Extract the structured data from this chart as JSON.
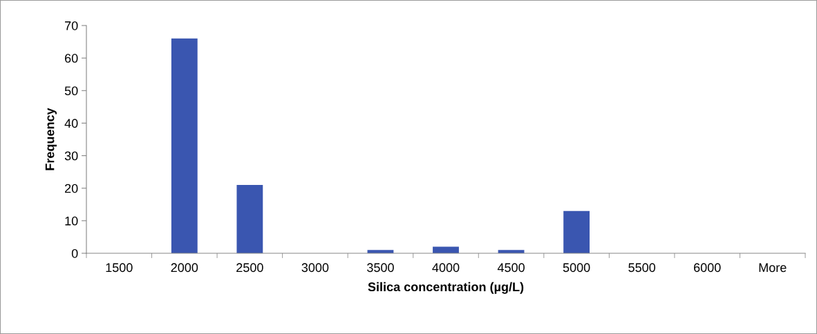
{
  "chart_data": {
    "type": "bar",
    "xlabel": "Silica concentration (µg/L)",
    "ylabel": "Frequency",
    "categories": [
      "1500",
      "2000",
      "2500",
      "3000",
      "3500",
      "4000",
      "4500",
      "5000",
      "5500",
      "6000",
      "More"
    ],
    "values": [
      0,
      66,
      21,
      0,
      1,
      2,
      1,
      13,
      0,
      0,
      0
    ],
    "color": "#3a56b0",
    "ylim": [
      0,
      70
    ],
    "yticks": [
      0,
      10,
      20,
      30,
      40,
      50,
      60,
      70
    ],
    "grid": false,
    "legend": false
  }
}
